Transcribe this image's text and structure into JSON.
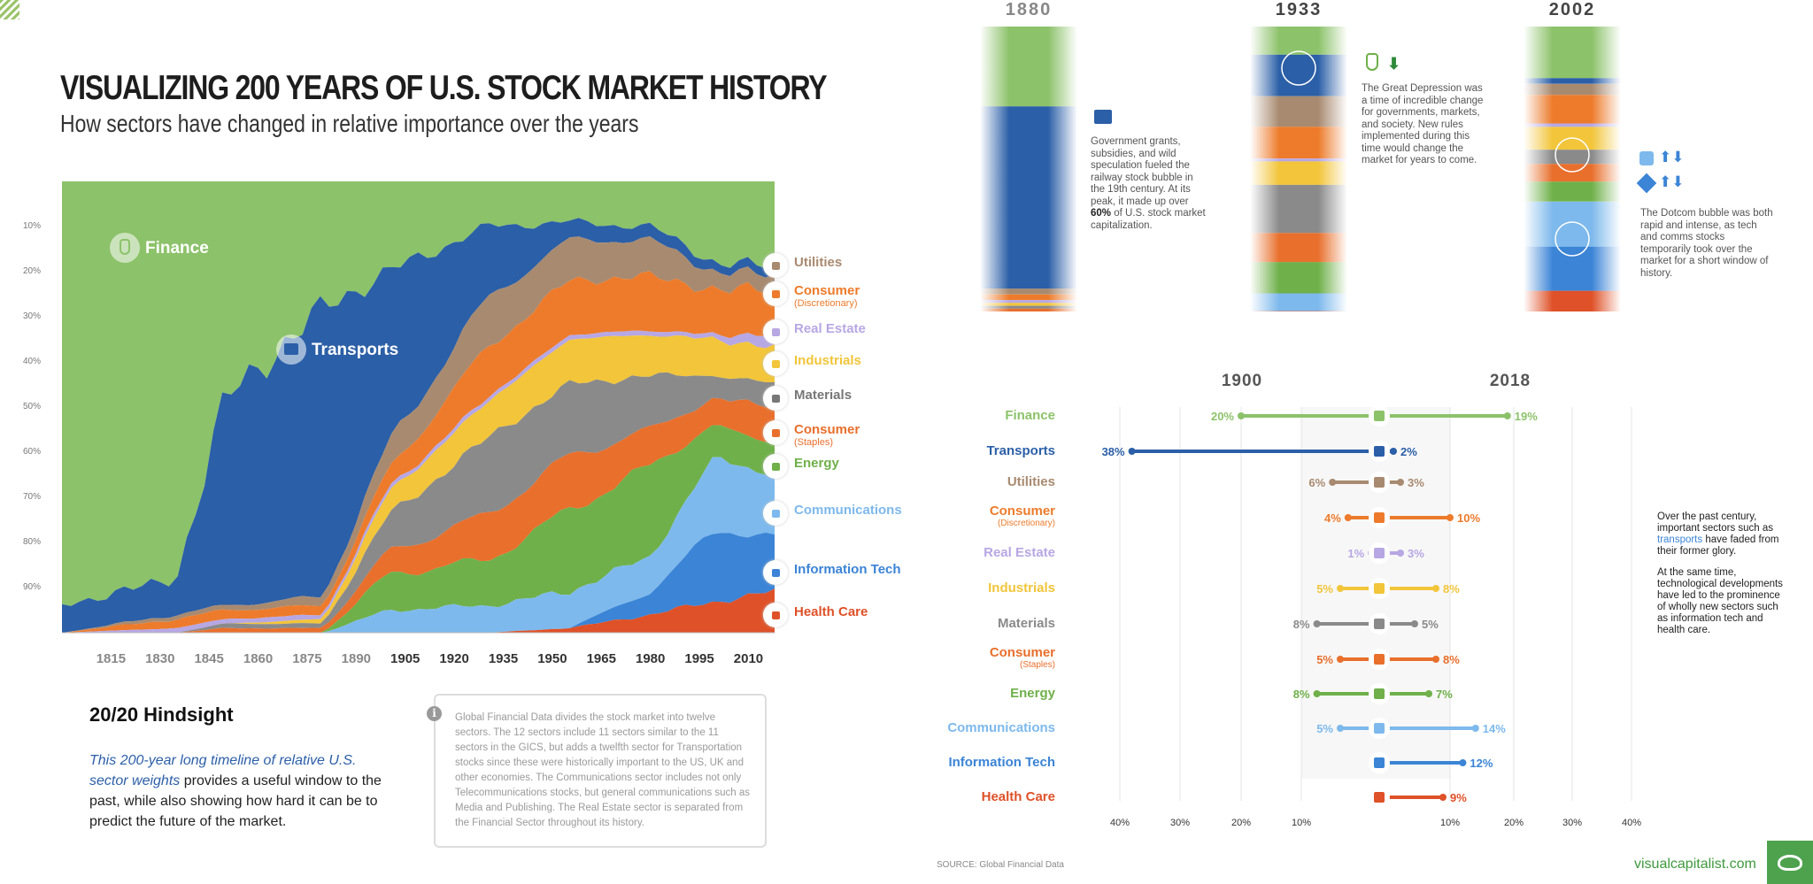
{
  "header": {
    "title": "VISUALIZING 200 YEARS OF U.S. STOCK MARKET HISTORY",
    "subtitle": "How sectors have changed in relative importance over the years"
  },
  "colors": {
    "finance": "#8cc26a",
    "transports": "#2b5fa7",
    "utilities": "#a88a70",
    "consumer_disc": "#ed7b2b",
    "real_estate": "#b7a7e3",
    "industrials": "#f2c53a",
    "materials": "#8a8a8a",
    "consumer_staples": "#e86f2c",
    "energy": "#6fb04a",
    "communications": "#7db9ec",
    "info_tech": "#3b84d6",
    "health_care": "#df5128"
  },
  "stream_chart": {
    "finance_label": "Finance",
    "transports_label": "Transports",
    "y_ticks": [
      "10%",
      "20%",
      "30%",
      "40%",
      "50%",
      "60%",
      "70%",
      "80%",
      "90%"
    ],
    "x_ticks": [
      "1815",
      "1830",
      "1845",
      "1860",
      "1875",
      "1890",
      "1905",
      "1920",
      "1935",
      "1950",
      "1965",
      "1980",
      "1995",
      "2010"
    ],
    "legend": [
      {
        "label": "Utilities",
        "sub": "",
        "color": "#a88a70"
      },
      {
        "label": "Consumer",
        "sub": "(Discretionary)",
        "color": "#ed7b2b"
      },
      {
        "label": "Real Estate",
        "sub": "",
        "color": "#b7a7e3"
      },
      {
        "label": "Industrials",
        "sub": "",
        "color": "#f2c53a"
      },
      {
        "label": "Materials",
        "sub": "",
        "color": "#777777"
      },
      {
        "label": "Consumer",
        "sub": "(Staples)",
        "color": "#e86f2c"
      },
      {
        "label": "Energy",
        "sub": "",
        "color": "#6fb04a"
      },
      {
        "label": "Communications",
        "sub": "",
        "color": "#7db9ec"
      },
      {
        "label": "Information Tech",
        "sub": "",
        "color": "#3b84d6"
      },
      {
        "label": "Health Care",
        "sub": "",
        "color": "#df5128"
      }
    ]
  },
  "hindsight": {
    "title": "20/20 Hindsight",
    "text_em": "This 200-year long timeline of relative U.S. sector weights",
    "text_rest": " provides a useful window to the past, while also showing how hard it can be to predict the future of the market."
  },
  "info_box": {
    "text": "Global Financial Data divides the stock market into twelve sectors. The 12 sectors include 11 sectors similar to the 11 sectors in the GICS, but adds a twelfth sector for Transportation stocks since these were historically important to the US, UK and other economies. The Communications sector includes not only Telecommunications stocks, but general communications such as Media and Publishing. The Real Estate sector is separated from the Financial Sector throughout its history."
  },
  "snapshots": [
    {
      "year": "1880",
      "note_pre": "Government grants, subsidies, and wild speculation fueled the railway stock bubble in the 19th century. At its peak, it made up over ",
      "note_bold": "60%",
      "note_post": " of U.S. stock market capitalization."
    },
    {
      "year": "1933",
      "note_pre": "The Great Depression was a time of incredible change for governments, markets, and society. New rules implemented during this time would change the market for years to come.",
      "note_bold": "",
      "note_post": ""
    },
    {
      "year": "2002",
      "note_pre": "The Dotcom bubble was both rapid and intense, as tech and comms stocks temporarily took over the market for a short window of history.",
      "note_bold": "",
      "note_post": ""
    }
  ],
  "comparison": {
    "year_left": "1900",
    "year_right": "2018",
    "axis_left": [
      "40%",
      "30%",
      "20%",
      "10%"
    ],
    "axis_right": [
      "10%",
      "20%",
      "30%",
      "40%"
    ],
    "side_note_1_pre": "Over the past century, important sectors such as ",
    "side_note_1_link": "transports",
    "side_note_1_post": " have faded from their former glory.",
    "side_note_2": "At the same time, technological developments have led to the prominence of wholly new sectors such as information tech and health care."
  },
  "chart_data": {
    "type": "bar",
    "title": "",
    "categories": [
      "Finance",
      "Transports",
      "Utilities",
      "Consumer (Discretionary)",
      "Real Estate",
      "Industrials",
      "Materials",
      "Consumer (Staples)",
      "Energy",
      "Communications",
      "Information Tech",
      "Health Care"
    ],
    "series": [
      {
        "name": "1900",
        "values": [
          20,
          38,
          6,
          4,
          1,
          5,
          8,
          5,
          8,
          5,
          null,
          null
        ]
      },
      {
        "name": "2018",
        "values": [
          19,
          2,
          3,
          10,
          3,
          8,
          5,
          8,
          7,
          14,
          12,
          9
        ]
      }
    ],
    "display": {
      "1900": [
        "20%",
        "38%",
        "6%",
        "4%",
        "1%",
        "5%",
        "8%",
        "5%",
        "8%",
        "5%",
        "",
        ""
      ],
      "2018": [
        "19%",
        "2%",
        "3%",
        "10%",
        "3%",
        "8%",
        "5%",
        "8%",
        "7%",
        "14%",
        "12%",
        "9%"
      ]
    },
    "xlim": [
      0,
      40
    ],
    "grid": true
  },
  "footer": {
    "source": "SOURCE: Global Financial Data",
    "brand": "visualcapitalist.com"
  }
}
